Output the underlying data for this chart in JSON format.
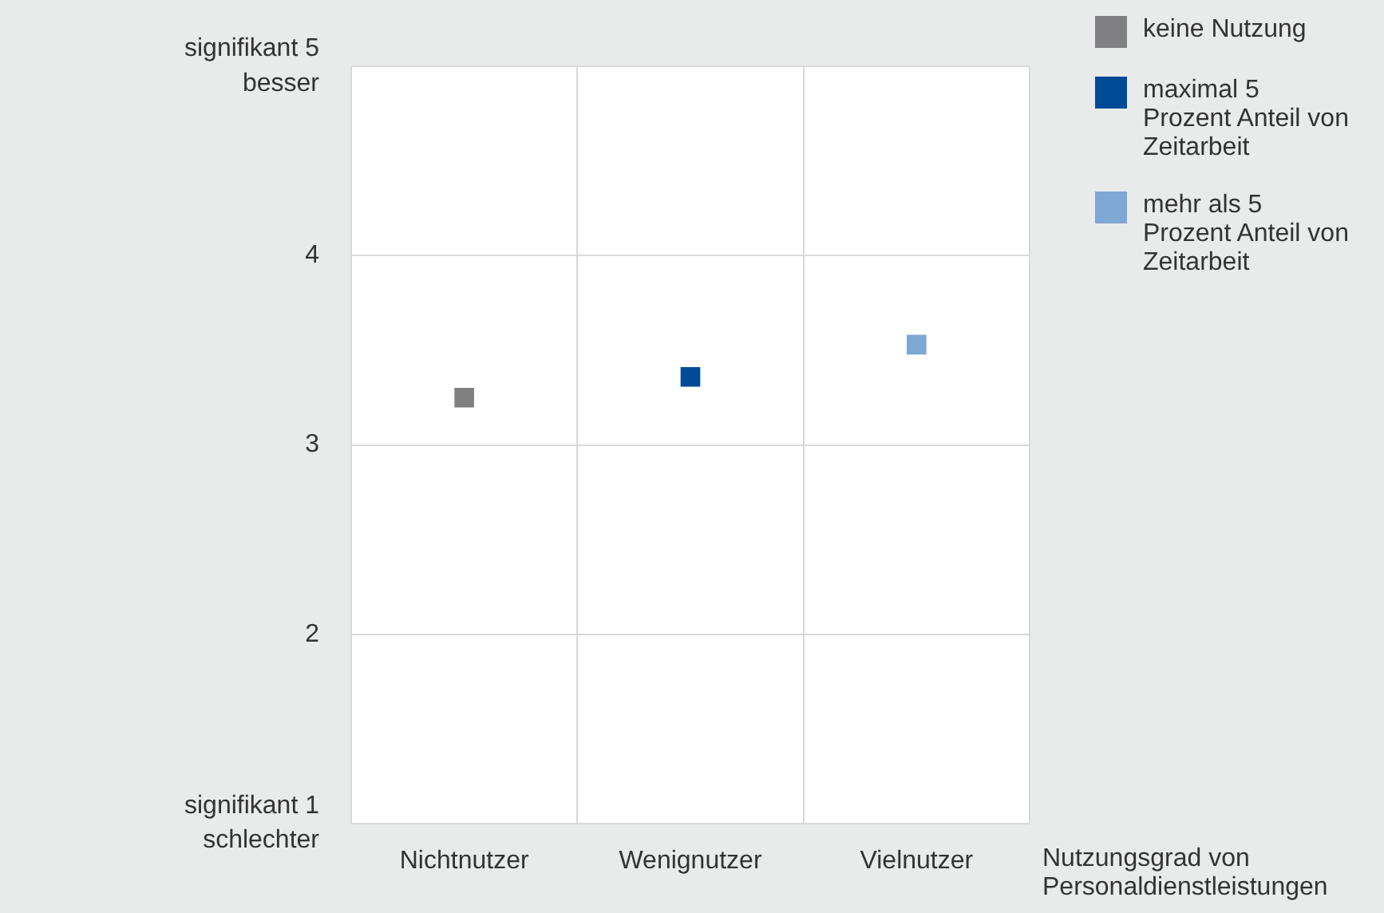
{
  "chart_data": {
    "type": "scatter",
    "xlabel": "Nutzungsgrad von Personaldienstleistungen",
    "categories": [
      "Nichtnutzer",
      "Wenignutzer",
      "Vielnutzer"
    ],
    "series": [
      {
        "name": "keine Nutzung",
        "color": "#808083",
        "values": [
          3.25,
          null,
          null
        ]
      },
      {
        "name": "maximal 5 Prozent Anteil von Zeitarbeit",
        "color": "#004b96",
        "values": [
          null,
          3.36,
          null
        ]
      },
      {
        "name": "mehr als 5 Prozent Anteil von Zeitarbeit",
        "color": "#7fa7d3",
        "values": [
          null,
          null,
          3.53
        ]
      }
    ],
    "ylim": [
      1,
      5
    ],
    "yticks": [
      {
        "value": 1,
        "label": "signifikant 1\nschlechter"
      },
      2,
      3,
      4,
      {
        "value": 5,
        "label": "signifikant 5\nbesser"
      }
    ],
    "grid": true,
    "legend": "top right",
    "marker": "square"
  }
}
